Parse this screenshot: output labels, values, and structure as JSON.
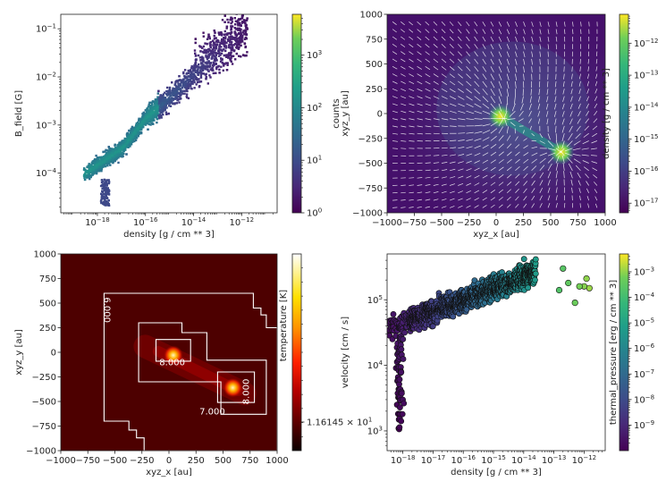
{
  "chart_data": [
    {
      "type": "heatmap",
      "xlabel": "density [g / cm ** 3]",
      "ylabel": "B_field [G]",
      "xscale": "log",
      "yscale": "log",
      "xlim": [
        3e-20,
        3e-11
      ],
      "ylim": [
        1.5e-05,
        0.2
      ],
      "xticks": [
        {
          "v": 1e-18,
          "t": "10^-18"
        },
        {
          "v": 1e-16,
          "t": "10^-16"
        },
        {
          "v": 1e-14,
          "t": "10^-14"
        },
        {
          "v": 1e-12,
          "t": "10^-12"
        }
      ],
      "yticks": [
        {
          "v": 0.0001,
          "t": "10^-4"
        },
        {
          "v": 0.001,
          "t": "10^-3"
        },
        {
          "v": 0.01,
          "t": "10^-2"
        },
        {
          "v": 0.1,
          "t": "10^-1"
        }
      ],
      "colorbar": {
        "label": "counts",
        "scale": "log",
        "range": [
          1,
          6000
        ],
        "ticks": [
          {
            "v": 1,
            "t": "10^0"
          },
          {
            "v": 10,
            "t": "10^1"
          },
          {
            "v": 100,
            "t": "10^2"
          },
          {
            "v": 1000,
            "t": "10^3"
          }
        ]
      },
      "ridge": [
        {
          "x": 1e-18,
          "y": 0.00016
        },
        {
          "x": 1e-17,
          "y": 0.00035
        },
        {
          "x": 1e-16,
          "y": 0.0015
        },
        {
          "x": 1e-15,
          "y": 0.004
        },
        {
          "x": 1e-14,
          "y": 0.012
        },
        {
          "x": 1e-13,
          "y": 0.03
        }
      ],
      "colormap": "viridis"
    },
    {
      "type": "heatmap",
      "xlabel": "xyz_x [au]",
      "ylabel": "xyz_y [au]",
      "xlim": [
        -1000,
        1000
      ],
      "ylim": [
        -1000,
        1000
      ],
      "xticks": [
        {
          "v": -1000,
          "t": "−1000"
        },
        {
          "v": -750,
          "t": "−750"
        },
        {
          "v": -500,
          "t": "−500"
        },
        {
          "v": -250,
          "t": "−250"
        },
        {
          "v": 0,
          "t": "0"
        },
        {
          "v": 250,
          "t": "250"
        },
        {
          "v": 500,
          "t": "500"
        },
        {
          "v": 750,
          "t": "750"
        },
        {
          "v": 1000,
          "t": "1000"
        }
      ],
      "yticks": [
        {
          "v": -1000,
          "t": "−1000"
        },
        {
          "v": -750,
          "t": "−750"
        },
        {
          "v": -500,
          "t": "−500"
        },
        {
          "v": -250,
          "t": "−250"
        },
        {
          "v": 0,
          "t": "0"
        },
        {
          "v": 250,
          "t": "250"
        },
        {
          "v": 500,
          "t": "500"
        },
        {
          "v": 750,
          "t": "750"
        },
        {
          "v": 1000,
          "t": "1000"
        }
      ],
      "colorbar": {
        "label": "density [g / cm ** 3]",
        "scale": "log",
        "range": [
          5e-18,
          8e-12
        ],
        "ticks": [
          {
            "v": 1e-17,
            "t": "10^-17"
          },
          {
            "v": 1e-16,
            "t": "10^-16"
          },
          {
            "v": 1e-15,
            "t": "10^-15"
          },
          {
            "v": 1e-14,
            "t": "10^-14"
          },
          {
            "v": 1e-13,
            "t": "10^-13"
          },
          {
            "v": 1e-12,
            "t": "10^-12"
          }
        ]
      },
      "sources": [
        {
          "x": 40,
          "y": -30
        },
        {
          "x": 600,
          "y": -390
        }
      ],
      "overlay": "velocity quiver",
      "colormap": "viridis"
    },
    {
      "type": "heatmap",
      "xlabel": "xyz_x [au]",
      "ylabel": "xyz_y [au]",
      "xlim": [
        -1000,
        1000
      ],
      "ylim": [
        -1000,
        1000
      ],
      "xticks": [
        {
          "v": -1000,
          "t": "−1000"
        },
        {
          "v": -750,
          "t": "−750"
        },
        {
          "v": -500,
          "t": "−500"
        },
        {
          "v": -250,
          "t": "−250"
        },
        {
          "v": 0,
          "t": "0"
        },
        {
          "v": 250,
          "t": "250"
        },
        {
          "v": 500,
          "t": "500"
        },
        {
          "v": 750,
          "t": "750"
        },
        {
          "v": 1000,
          "t": "1000"
        }
      ],
      "yticks": [
        {
          "v": -1000,
          "t": "−1000"
        },
        {
          "v": -750,
          "t": "−750"
        },
        {
          "v": -500,
          "t": "−500"
        },
        {
          "v": -250,
          "t": "−250"
        },
        {
          "v": 0,
          "t": "0"
        },
        {
          "v": 250,
          "t": "250"
        },
        {
          "v": 500,
          "t": "500"
        },
        {
          "v": 750,
          "t": "750"
        },
        {
          "v": 1000,
          "t": "1000"
        }
      ],
      "colorbar": {
        "label": "temperature [K]",
        "scale": "log",
        "tick_label": "1.16145 × 10^1"
      },
      "contours": [
        {
          "level": "6.000",
          "path": [
            [
              -600,
              600
            ],
            [
              780,
              600
            ],
            [
              780,
              450
            ],
            [
              850,
              450
            ],
            [
              850,
              380
            ],
            [
              900,
              380
            ],
            [
              900,
              250
            ],
            [
              1000,
              250
            ],
            [
              1000,
              -1000
            ],
            [
              -230,
              -1000
            ],
            [
              -230,
              -870
            ],
            [
              -300,
              -870
            ],
            [
              -300,
              -790
            ],
            [
              -370,
              -790
            ],
            [
              -370,
              -700
            ],
            [
              -600,
              -700
            ]
          ],
          "label_at": [
            -600,
            430
          ],
          "label_rot": 90
        },
        {
          "level": "7.000",
          "path": [
            [
              -280,
              300
            ],
            [
              120,
              300
            ],
            [
              120,
              200
            ],
            [
              350,
              200
            ],
            [
              350,
              -80
            ],
            [
              900,
              -80
            ],
            [
              900,
              -630
            ],
            [
              480,
              -630
            ],
            [
              480,
              -300
            ],
            [
              -280,
              -300
            ]
          ],
          "label_at": [
            400,
            -630
          ],
          "label_rot": 0
        },
        {
          "level": "8.000",
          "path": [
            [
              -120,
              130
            ],
            [
              200,
              130
            ],
            [
              200,
              -90
            ],
            [
              -120,
              -90
            ]
          ],
          "label_at": [
            30,
            -130
          ],
          "label_rot": 0
        },
        {
          "level": "8.000",
          "path": [
            [
              450,
              -200
            ],
            [
              790,
              -200
            ],
            [
              790,
              -510
            ],
            [
              450,
              -510
            ]
          ],
          "label_at": [
            740,
            -400
          ],
          "label_rot": -90
        }
      ],
      "sources": [
        {
          "x": 40,
          "y": -30
        },
        {
          "x": 590,
          "y": -360
        }
      ],
      "colormap": "hot"
    },
    {
      "type": "scatter",
      "xlabel": "density [g / cm ** 3]",
      "ylabel": "velocity [cm / s]",
      "xscale": "log",
      "yscale": "log",
      "xlim": [
        3e-19,
        5e-12
      ],
      "ylim": [
        500,
        500000
      ],
      "xticks": [
        {
          "v": 1e-18,
          "t": "10^-18"
        },
        {
          "v": 1e-17,
          "t": "10^-17"
        },
        {
          "v": 1e-16,
          "t": "10^-16"
        },
        {
          "v": 1e-15,
          "t": "10^-15"
        },
        {
          "v": 1e-14,
          "t": "10^-14"
        },
        {
          "v": 1e-13,
          "t": "10^-13"
        },
        {
          "v": 1e-12,
          "t": "10^-12"
        }
      ],
      "yticks": [
        {
          "v": 1000,
          "t": "10^3"
        },
        {
          "v": 10000,
          "t": "10^4"
        },
        {
          "v": 100000,
          "t": "10^5"
        }
      ],
      "colorbar": {
        "label": "thermal_pressure [erg / cm ** 3]",
        "scale": "log",
        "range": [
          1e-10,
          0.005
        ],
        "ticks": [
          {
            "v": 1e-09,
            "t": "10^-9"
          },
          {
            "v": 1e-08,
            "t": "10^-8"
          },
          {
            "v": 1e-07,
            "t": "10^-7"
          },
          {
            "v": 1e-06,
            "t": "10^-6"
          },
          {
            "v": 1e-05,
            "t": "10^-5"
          },
          {
            "v": 0.0001,
            "t": "10^-4"
          },
          {
            "v": 0.001,
            "t": "10^-3"
          }
        ]
      },
      "outliers": [
        {
          "x": 2e-13,
          "y": 300000
        },
        {
          "x": 3e-13,
          "y": 180000
        },
        {
          "x": 1.5e-13,
          "y": 140000
        },
        {
          "x": 5e-13,
          "y": 90000
        },
        {
          "x": 1.2e-12,
          "y": 210000
        },
        {
          "x": 1.5e-12,
          "y": 150000
        },
        {
          "x": 1e-12,
          "y": 160000
        },
        {
          "x": 7e-13,
          "y": 160000
        }
      ],
      "colormap": "viridis"
    }
  ]
}
